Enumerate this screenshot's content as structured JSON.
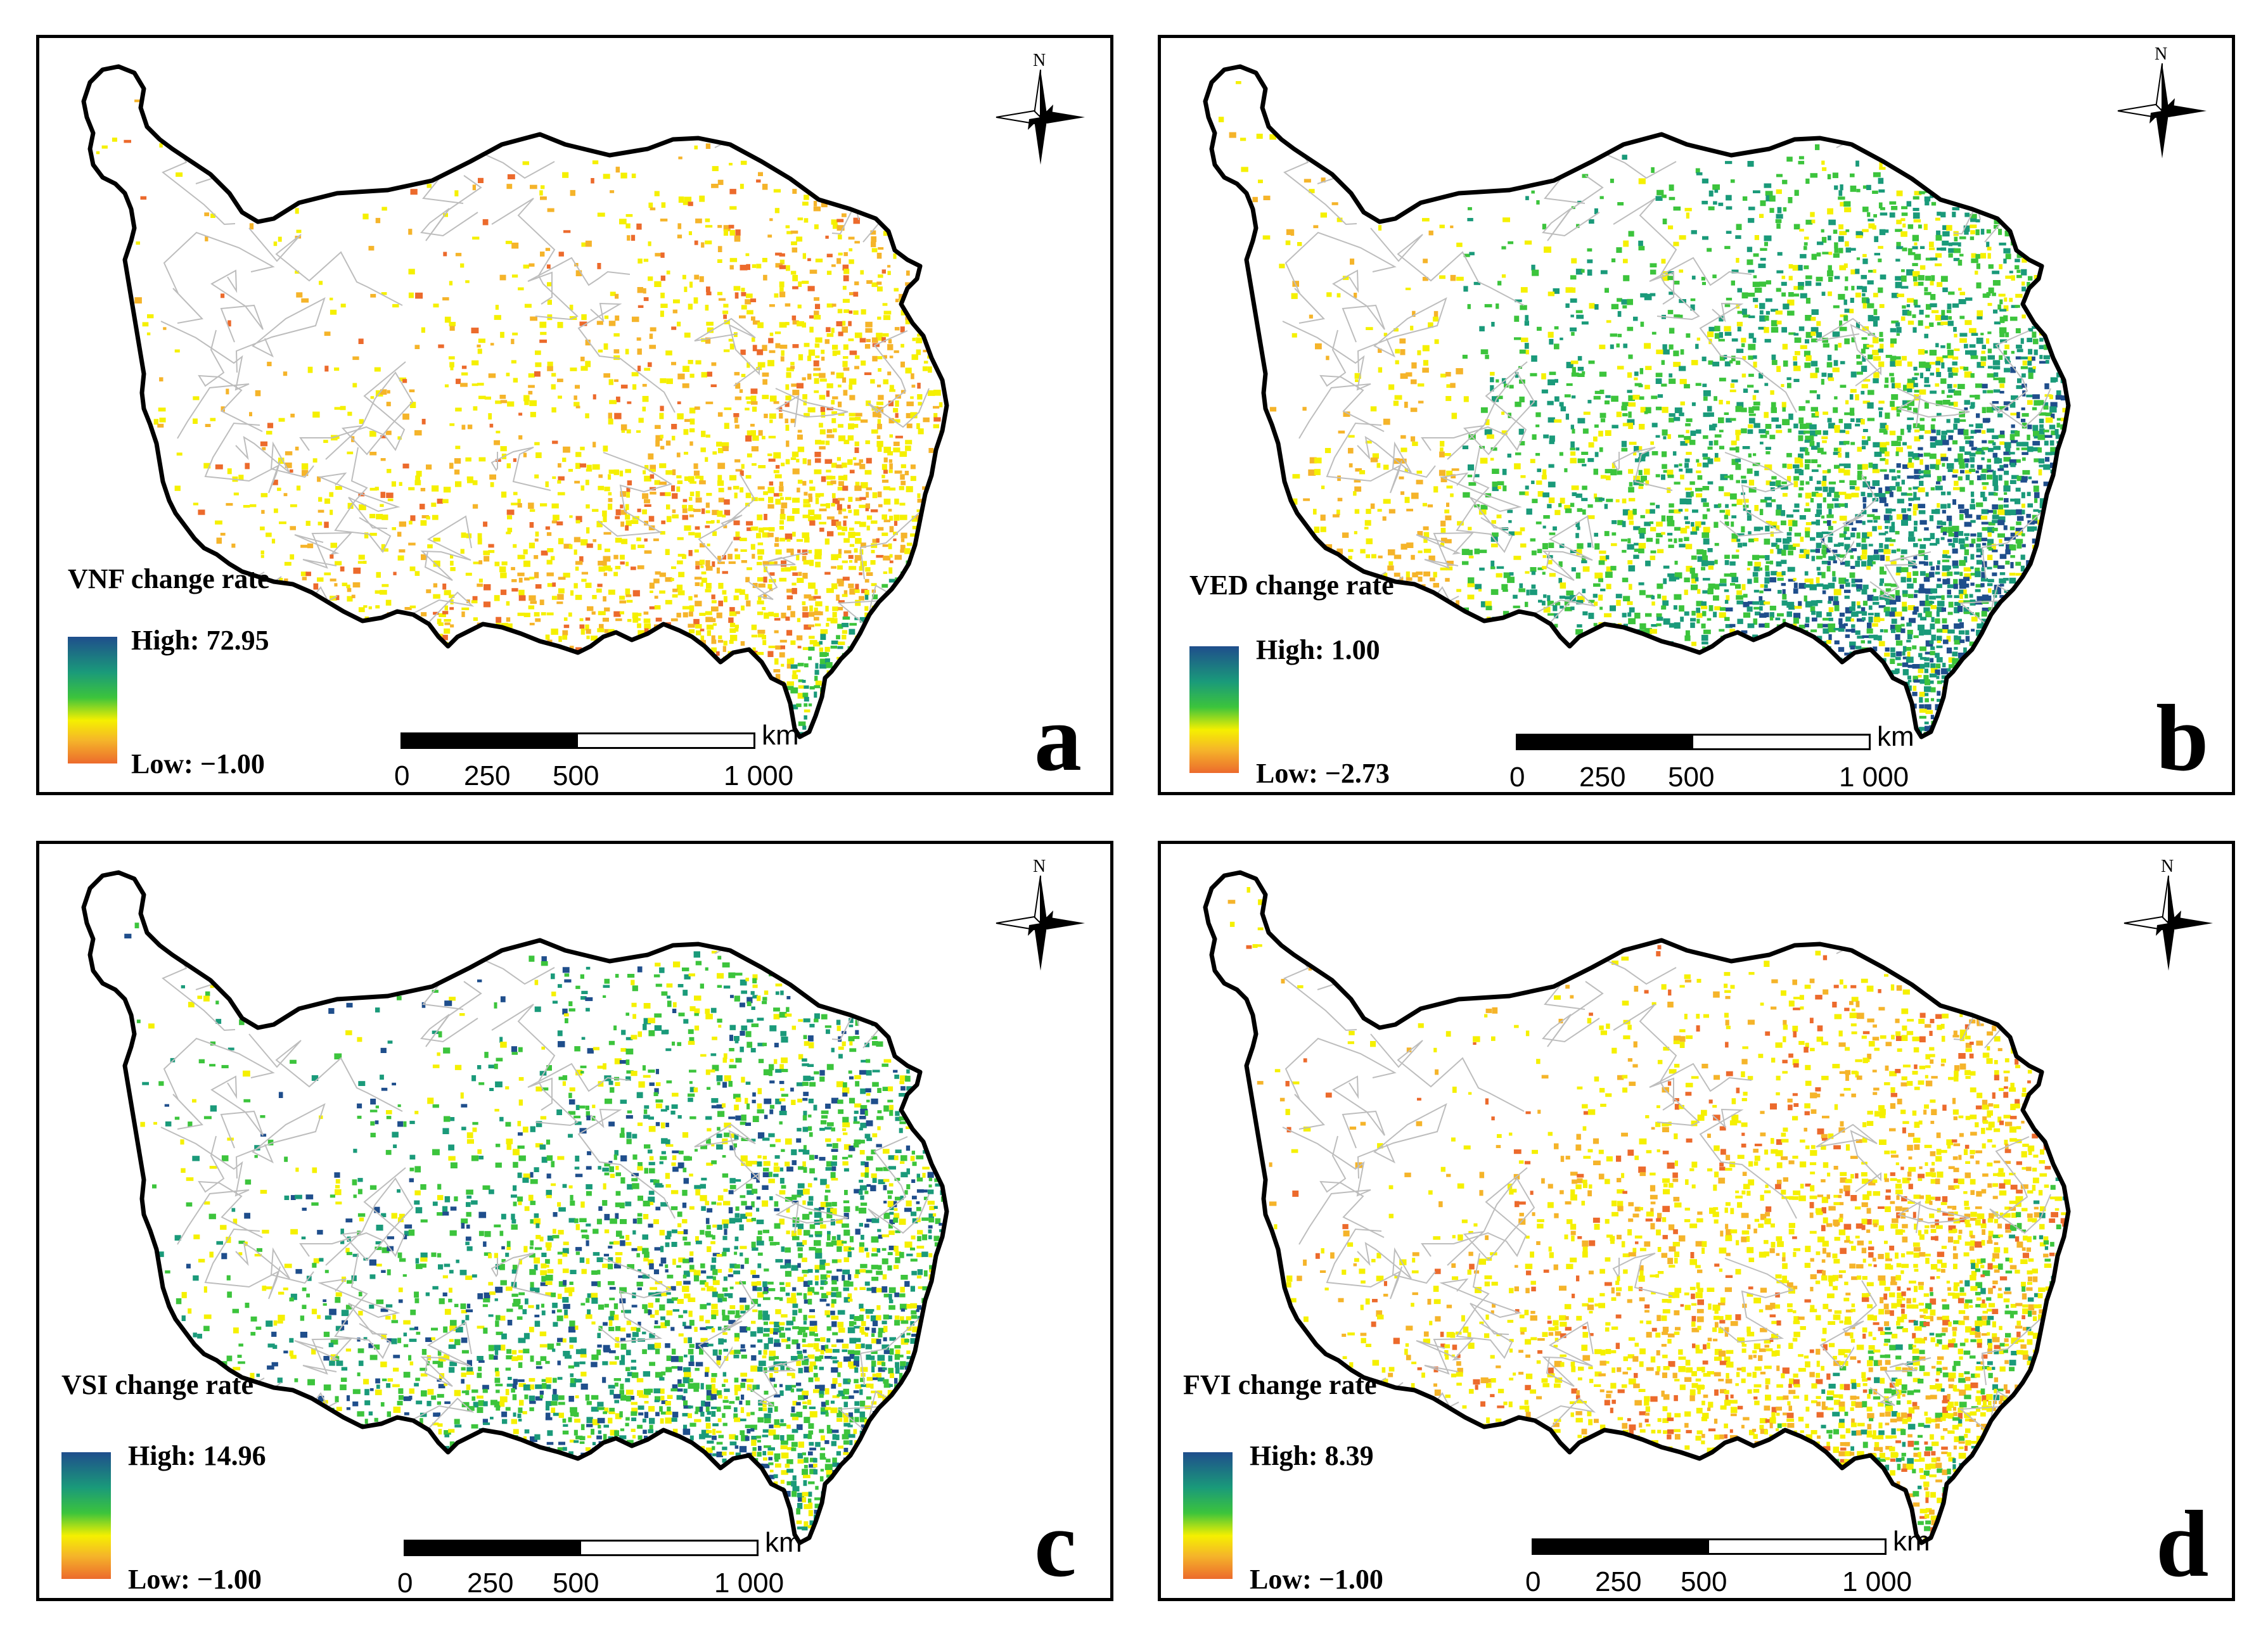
{
  "panels": [
    {
      "id": "a",
      "letter": "a",
      "legend_title": "VNF change rate",
      "high": "High: 72.95",
      "low": "Low: −1.00",
      "scale": {
        "unit": "km",
        "ticks": [
          "0",
          "250",
          "500",
          "1 000"
        ]
      },
      "north": "N",
      "pattern": "vnf"
    },
    {
      "id": "b",
      "letter": "b",
      "legend_title": "VED change rate",
      "high": "High: 1.00",
      "low": "Low: −2.73",
      "scale": {
        "unit": "km",
        "ticks": [
          "0",
          "250",
          "500",
          "1 000"
        ]
      },
      "north": "N",
      "pattern": "ved"
    },
    {
      "id": "c",
      "letter": "c",
      "legend_title": "VSI change rate",
      "high": "High: 14.96",
      "low": "Low: −1.00",
      "scale": {
        "unit": "km",
        "ticks": [
          "0",
          "250",
          "500",
          "1 000"
        ]
      },
      "north": "N",
      "pattern": "vsi"
    },
    {
      "id": "d",
      "letter": "d",
      "legend_title": "FVI change rate",
      "high": "High: 8.39",
      "low": "Low: −1.00",
      "scale": {
        "unit": "km",
        "ticks": [
          "0",
          "250",
          "500",
          "1 000"
        ]
      },
      "north": "N",
      "pattern": "fvi"
    }
  ],
  "colors": {
    "high": "#1f4e8c",
    "mid_high": "#1a9a7a",
    "mid": "#3cc43c",
    "mid_low": "#f5f000",
    "low": "#ec6a2c",
    "boundary": "#000000",
    "county_lines": "#bdbdbd"
  }
}
